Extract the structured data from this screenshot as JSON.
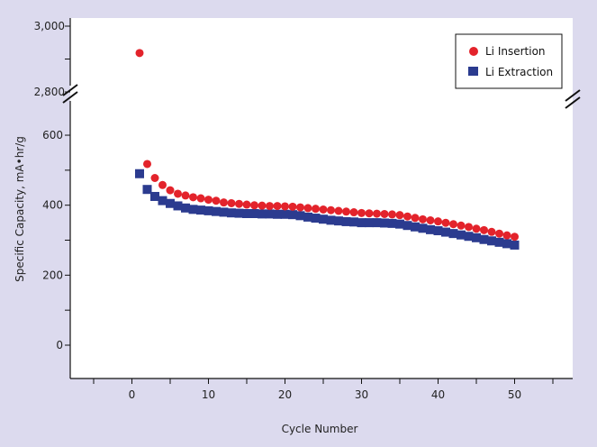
{
  "colors": {
    "background": "#dcdaee",
    "plot_background": "#ffffff",
    "insertion": "#e3232b",
    "extraction": "#2b3b8f"
  },
  "chart_data": {
    "type": "scatter",
    "title": "",
    "xlabel": "Cycle Number",
    "ylabel": "Specific Capacity, mA•hr/g",
    "xlim": [
      -8,
      58
    ],
    "x_ticks": [
      0,
      10,
      20,
      30,
      40,
      50
    ],
    "y_ticks_lower": [
      0,
      200,
      400,
      600
    ],
    "y_ticks_upper": [
      2800,
      3000
    ],
    "y_tick_labels_upper": [
      "2,800",
      "3,000"
    ],
    "y_axis_break": [
      600,
      2800
    ],
    "grid": false,
    "legend_position": "top-right",
    "series": [
      {
        "name": "Li Insertion",
        "marker": "circle",
        "color": "#e3232b",
        "x": [
          1,
          2,
          3,
          4,
          5,
          6,
          7,
          8,
          9,
          10,
          11,
          12,
          13,
          14,
          15,
          16,
          17,
          18,
          19,
          20,
          21,
          22,
          23,
          24,
          25,
          26,
          27,
          28,
          29,
          30,
          31,
          32,
          33,
          34,
          35,
          36,
          37,
          38,
          39,
          40,
          41,
          42,
          43,
          44,
          45,
          46,
          47,
          48,
          49,
          50
        ],
        "y": [
          2910,
          510,
          470,
          450,
          435,
          425,
          420,
          415,
          412,
          408,
          405,
          400,
          398,
          396,
          394,
          392,
          391,
          390,
          390,
          389,
          388,
          386,
          384,
          382,
          380,
          378,
          376,
          374,
          372,
          370,
          369,
          368,
          367,
          366,
          364,
          360,
          356,
          352,
          349,
          346,
          342,
          338,
          334,
          330,
          325,
          321,
          316,
          311,
          306,
          302
        ]
      },
      {
        "name": "Li Extraction",
        "marker": "square",
        "color": "#2b3b8f",
        "x": [
          1,
          2,
          3,
          4,
          5,
          6,
          7,
          8,
          9,
          10,
          11,
          12,
          13,
          14,
          15,
          16,
          17,
          18,
          19,
          20,
          21,
          22,
          23,
          24,
          25,
          26,
          27,
          28,
          29,
          30,
          31,
          32,
          33,
          34,
          35,
          36,
          37,
          38,
          39,
          40,
          41,
          42,
          43,
          44,
          45,
          46,
          47,
          48,
          49,
          50
        ],
        "y": [
          490,
          445,
          425,
          413,
          405,
          398,
          392,
          388,
          386,
          384,
          382,
          380,
          378,
          377,
          376,
          376,
          375,
          375,
          374,
          374,
          373,
          370,
          366,
          363,
          360,
          357,
          355,
          353,
          352,
          350,
          350,
          350,
          349,
          348,
          346,
          342,
          338,
          334,
          330,
          327,
          323,
          319,
          315,
          311,
          307,
          302,
          298,
          294,
          290,
          286
        ]
      }
    ]
  }
}
